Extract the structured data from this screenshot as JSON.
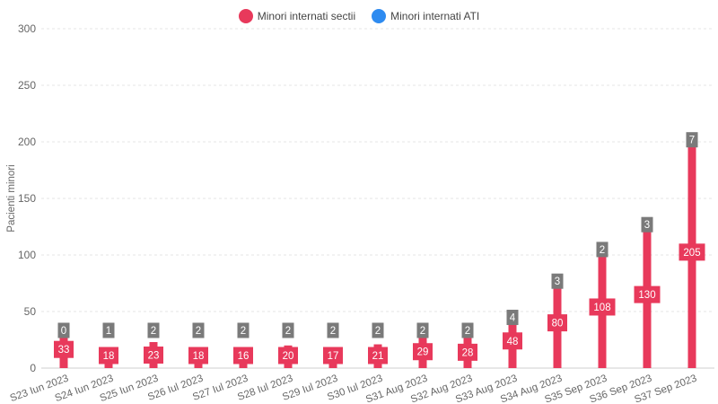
{
  "chart_data": {
    "type": "bar",
    "title": "",
    "xlabel": "",
    "ylabel": "Pacienti minori",
    "ylim": [
      0,
      300
    ],
    "yticks": [
      0,
      50,
      100,
      150,
      200,
      250,
      300
    ],
    "grid": true,
    "legend_position": "top-center",
    "categories": [
      "S23 Iun 2023",
      "S24 Iun 2023",
      "S25 Iun 2023",
      "S26 Iul 2023",
      "S27 Iul 2023",
      "S28 Iul 2023",
      "S29 Iul 2023",
      "S30 Iul 2023",
      "S31 Aug 2023",
      "S32 Aug 2023",
      "S33 Aug 2023",
      "S34 Aug 2023",
      "S35 Sep 2023",
      "S36 Sep 2023",
      "S37 Sep 2023"
    ],
    "series": [
      {
        "name": "Minori internati sectii",
        "color": "#e8395b",
        "values": [
          33,
          18,
          23,
          18,
          16,
          20,
          17,
          21,
          29,
          28,
          48,
          80,
          108,
          130,
          205
        ]
      },
      {
        "name": "Minori internati ATI",
        "color": "#2e8bf0",
        "values": [
          0,
          1,
          2,
          2,
          2,
          2,
          2,
          2,
          2,
          2,
          4,
          3,
          2,
          3,
          7
        ]
      }
    ],
    "label_box_colors": {
      "sectii": "#e8395b",
      "ati": "#7a7a7a"
    }
  }
}
